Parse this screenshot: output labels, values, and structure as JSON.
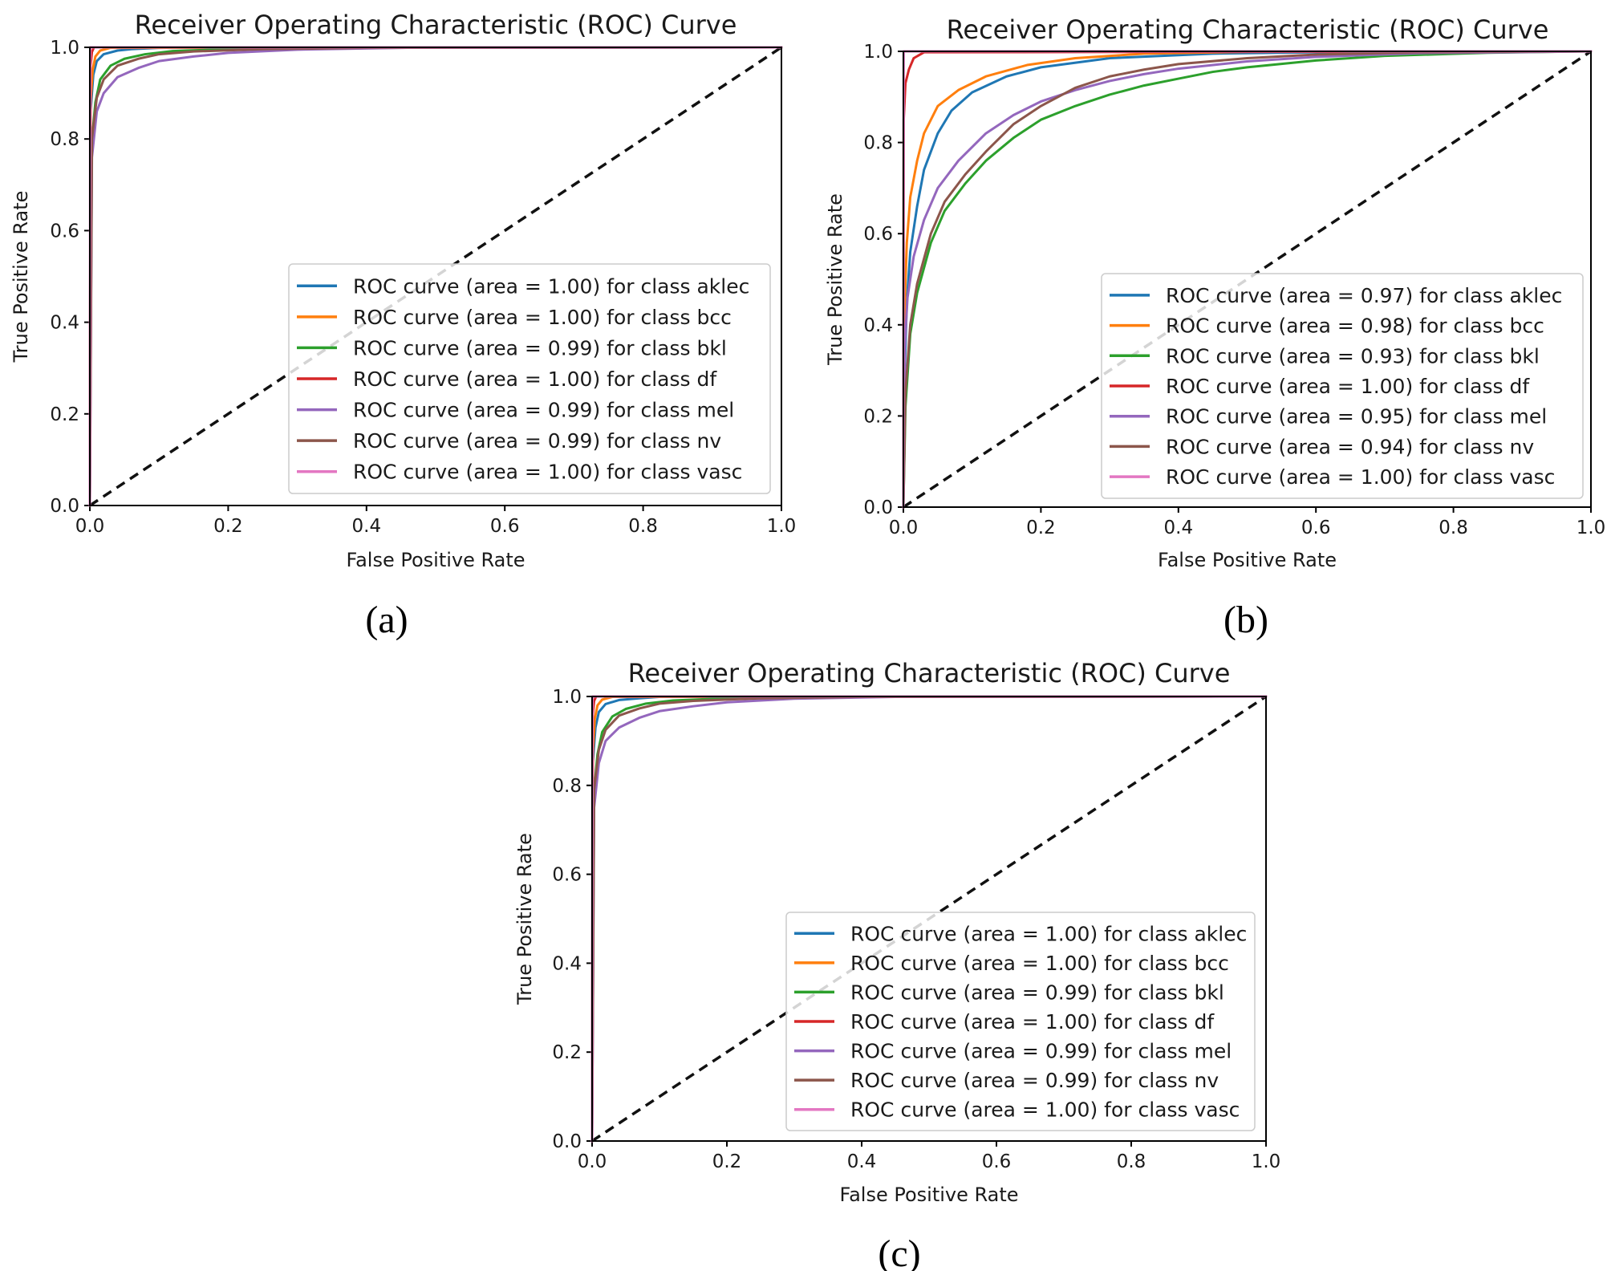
{
  "chart_data": [
    {
      "type": "line",
      "panel": "(a)",
      "title": "Receiver Operating Characteristic (ROC) Curve",
      "xlabel": "False Positive Rate",
      "ylabel": "True Positive Rate",
      "xlim": [
        0.0,
        1.0
      ],
      "ylim": [
        0.0,
        1.0
      ],
      "xticks": [
        "0.0",
        "0.2",
        "0.4",
        "0.6",
        "0.8",
        "1.0"
      ],
      "yticks": [
        "0.0",
        "0.2",
        "0.4",
        "0.6",
        "0.8",
        "1.0"
      ],
      "legend_position": "center-right",
      "diagonal": {
        "x": [
          0,
          1
        ],
        "y": [
          0,
          1
        ],
        "style": "dashed",
        "color": "#111111"
      },
      "series": [
        {
          "name": "ROC curve (area = 1.00) for class aklec",
          "color": "#1f77b4",
          "x": [
            0,
            0.001,
            0.005,
            0.01,
            0.02,
            0.04,
            0.06,
            0.1,
            1.0
          ],
          "y": [
            0,
            0.86,
            0.94,
            0.97,
            0.985,
            0.993,
            0.996,
            0.999,
            1.0
          ]
        },
        {
          "name": "ROC curve (area = 1.00) for class bcc",
          "color": "#ff7f0e",
          "x": [
            0,
            0.001,
            0.004,
            0.008,
            0.015,
            0.03,
            1.0
          ],
          "y": [
            0,
            0.88,
            0.95,
            0.98,
            0.993,
            0.999,
            1.0
          ]
        },
        {
          "name": "ROC curve (area = 0.99) for class bkl",
          "color": "#2ca02c",
          "x": [
            0,
            0.002,
            0.008,
            0.015,
            0.03,
            0.05,
            0.08,
            0.12,
            0.2,
            0.35,
            1.0
          ],
          "y": [
            0,
            0.78,
            0.88,
            0.93,
            0.96,
            0.975,
            0.985,
            0.992,
            0.996,
            0.999,
            1.0
          ]
        },
        {
          "name": "ROC curve (area = 1.00) for class df",
          "color": "#d62728",
          "x": [
            0,
            0.001,
            0.003,
            0.006,
            1.0
          ],
          "y": [
            0,
            0.96,
            0.99,
            1.0,
            1.0
          ]
        },
        {
          "name": "ROC curve (area = 0.99) for class mel",
          "color": "#9467bd",
          "x": [
            0,
            0.003,
            0.01,
            0.02,
            0.04,
            0.07,
            0.1,
            0.15,
            0.2,
            0.3,
            0.45,
            1.0
          ],
          "y": [
            0,
            0.76,
            0.86,
            0.9,
            0.935,
            0.955,
            0.97,
            0.98,
            0.988,
            0.995,
            0.999,
            1.0
          ]
        },
        {
          "name": "ROC curve (area = 0.99) for class nv",
          "color": "#8c564b",
          "x": [
            0,
            0.003,
            0.01,
            0.02,
            0.04,
            0.07,
            0.1,
            0.15,
            0.25,
            0.4,
            1.0
          ],
          "y": [
            0,
            0.8,
            0.89,
            0.93,
            0.96,
            0.975,
            0.985,
            0.991,
            0.996,
            0.999,
            1.0
          ]
        },
        {
          "name": "ROC curve (area = 1.00) for class vasc",
          "color": "#e377c2",
          "x": [
            0,
            0.0005,
            1.0
          ],
          "y": [
            0,
            1.0,
            1.0
          ]
        }
      ]
    },
    {
      "type": "line",
      "panel": "(b)",
      "title": "Receiver Operating Characteristic (ROC) Curve",
      "xlabel": "False Positive Rate",
      "ylabel": "True Positive Rate",
      "xlim": [
        0.0,
        1.0
      ],
      "ylim": [
        0.0,
        1.0
      ],
      "xticks": [
        "0.0",
        "0.2",
        "0.4",
        "0.6",
        "0.8",
        "1.0"
      ],
      "yticks": [
        "0.0",
        "0.2",
        "0.4",
        "0.6",
        "0.8",
        "1.0"
      ],
      "legend_position": "center-right",
      "diagonal": {
        "x": [
          0,
          1
        ],
        "y": [
          0,
          1
        ],
        "style": "dashed",
        "color": "#111111"
      },
      "series": [
        {
          "name": "ROC curve (area = 0.97) for class aklec",
          "color": "#1f77b4",
          "x": [
            0,
            0.002,
            0.005,
            0.01,
            0.02,
            0.03,
            0.05,
            0.07,
            0.1,
            0.15,
            0.2,
            0.3,
            0.45,
            0.6,
            0.8,
            1.0
          ],
          "y": [
            0,
            0.3,
            0.45,
            0.56,
            0.66,
            0.74,
            0.82,
            0.87,
            0.91,
            0.945,
            0.965,
            0.985,
            0.995,
            0.998,
            1.0,
            1.0
          ]
        },
        {
          "name": "ROC curve (area = 0.98) for class bcc",
          "color": "#ff7f0e",
          "x": [
            0,
            0.002,
            0.005,
            0.01,
            0.02,
            0.03,
            0.05,
            0.08,
            0.12,
            0.18,
            0.25,
            0.35,
            0.5,
            0.7,
            1.0
          ],
          "y": [
            0,
            0.45,
            0.58,
            0.68,
            0.76,
            0.82,
            0.88,
            0.915,
            0.945,
            0.97,
            0.985,
            0.995,
            0.999,
            1.0,
            1.0
          ]
        },
        {
          "name": "ROC curve (area = 0.93) for class bkl",
          "color": "#2ca02c",
          "x": [
            0,
            0.003,
            0.01,
            0.02,
            0.04,
            0.06,
            0.09,
            0.12,
            0.16,
            0.2,
            0.25,
            0.3,
            0.35,
            0.4,
            0.45,
            0.5,
            0.6,
            0.7,
            0.85,
            1.0
          ],
          "y": [
            0,
            0.22,
            0.38,
            0.47,
            0.58,
            0.65,
            0.71,
            0.76,
            0.81,
            0.85,
            0.88,
            0.905,
            0.925,
            0.94,
            0.955,
            0.965,
            0.98,
            0.99,
            0.997,
            1.0
          ]
        },
        {
          "name": "ROC curve (area = 1.00) for class df",
          "color": "#d62728",
          "x": [
            0,
            0.0005,
            0.003,
            0.008,
            0.015,
            0.03,
            1.0
          ],
          "y": [
            0,
            0.85,
            0.93,
            0.96,
            0.985,
            0.998,
            1.0
          ]
        },
        {
          "name": "ROC curve (area = 0.95) for class mel",
          "color": "#9467bd",
          "x": [
            0,
            0.002,
            0.006,
            0.015,
            0.03,
            0.05,
            0.08,
            0.12,
            0.16,
            0.2,
            0.25,
            0.3,
            0.35,
            0.4,
            0.5,
            0.6,
            0.75,
            1.0
          ],
          "y": [
            0,
            0.35,
            0.46,
            0.55,
            0.63,
            0.7,
            0.76,
            0.82,
            0.86,
            0.89,
            0.915,
            0.935,
            0.95,
            0.962,
            0.978,
            0.988,
            0.996,
            1.0
          ]
        },
        {
          "name": "ROC curve (area = 0.94) for class nv",
          "color": "#8c564b",
          "x": [
            0,
            0.003,
            0.01,
            0.02,
            0.04,
            0.06,
            0.09,
            0.12,
            0.16,
            0.2,
            0.25,
            0.3,
            0.35,
            0.4,
            0.5,
            0.6,
            0.75,
            1.0
          ],
          "y": [
            0,
            0.25,
            0.4,
            0.49,
            0.6,
            0.67,
            0.73,
            0.78,
            0.84,
            0.88,
            0.92,
            0.945,
            0.96,
            0.972,
            0.985,
            0.993,
            0.998,
            1.0
          ]
        },
        {
          "name": "ROC curve (area = 1.00) for class vasc",
          "color": "#e377c2",
          "x": [
            0,
            0.0005,
            1.0
          ],
          "y": [
            0,
            1.0,
            1.0
          ]
        }
      ]
    },
    {
      "type": "line",
      "panel": "(c)",
      "title": "Receiver Operating Characteristic (ROC) Curve",
      "xlabel": "False Positive Rate",
      "ylabel": "True Positive Rate",
      "xlim": [
        0.0,
        1.0
      ],
      "ylim": [
        0.0,
        1.0
      ],
      "xticks": [
        "0.0",
        "0.2",
        "0.4",
        "0.6",
        "0.8",
        "1.0"
      ],
      "yticks": [
        "0.0",
        "0.2",
        "0.4",
        "0.6",
        "0.8",
        "1.0"
      ],
      "legend_position": "center-right",
      "diagonal": {
        "x": [
          0,
          1
        ],
        "y": [
          0,
          1
        ],
        "style": "dashed",
        "color": "#111111"
      },
      "series": [
        {
          "name": "ROC curve (area = 1.00) for class aklec",
          "color": "#1f77b4",
          "x": [
            0,
            0.001,
            0.005,
            0.01,
            0.02,
            0.04,
            0.07,
            0.1,
            1.0
          ],
          "y": [
            0,
            0.85,
            0.93,
            0.965,
            0.983,
            0.992,
            0.996,
            0.999,
            1.0
          ]
        },
        {
          "name": "ROC curve (area = 1.00) for class bcc",
          "color": "#ff7f0e",
          "x": [
            0,
            0.001,
            0.004,
            0.008,
            0.015,
            0.03,
            1.0
          ],
          "y": [
            0,
            0.87,
            0.95,
            0.98,
            0.993,
            0.999,
            1.0
          ]
        },
        {
          "name": "ROC curve (area = 0.99) for class bkl",
          "color": "#2ca02c",
          "x": [
            0,
            0.002,
            0.008,
            0.015,
            0.03,
            0.05,
            0.08,
            0.12,
            0.2,
            0.35,
            1.0
          ],
          "y": [
            0,
            0.77,
            0.87,
            0.92,
            0.955,
            0.972,
            0.984,
            0.991,
            0.996,
            0.999,
            1.0
          ]
        },
        {
          "name": "ROC curve (area = 1.00) for class df",
          "color": "#d62728",
          "x": [
            0,
            0.001,
            0.003,
            0.006,
            1.0
          ],
          "y": [
            0,
            0.96,
            0.99,
            1.0,
            1.0
          ]
        },
        {
          "name": "ROC curve (area = 0.99) for class mel",
          "color": "#9467bd",
          "x": [
            0,
            0.003,
            0.01,
            0.02,
            0.04,
            0.07,
            0.1,
            0.15,
            0.2,
            0.3,
            0.45,
            1.0
          ],
          "y": [
            0,
            0.75,
            0.85,
            0.9,
            0.93,
            0.952,
            0.967,
            0.978,
            0.987,
            0.995,
            0.999,
            1.0
          ]
        },
        {
          "name": "ROC curve (area = 0.99) for class nv",
          "color": "#8c564b",
          "x": [
            0,
            0.003,
            0.01,
            0.02,
            0.04,
            0.07,
            0.1,
            0.15,
            0.25,
            0.4,
            1.0
          ],
          "y": [
            0,
            0.79,
            0.88,
            0.925,
            0.957,
            0.973,
            0.984,
            0.99,
            0.996,
            0.999,
            1.0
          ]
        },
        {
          "name": "ROC curve (area = 1.00) for class vasc",
          "color": "#e377c2",
          "x": [
            0,
            0.0005,
            1.0
          ],
          "y": [
            0,
            1.0,
            1.0
          ]
        }
      ]
    }
  ]
}
